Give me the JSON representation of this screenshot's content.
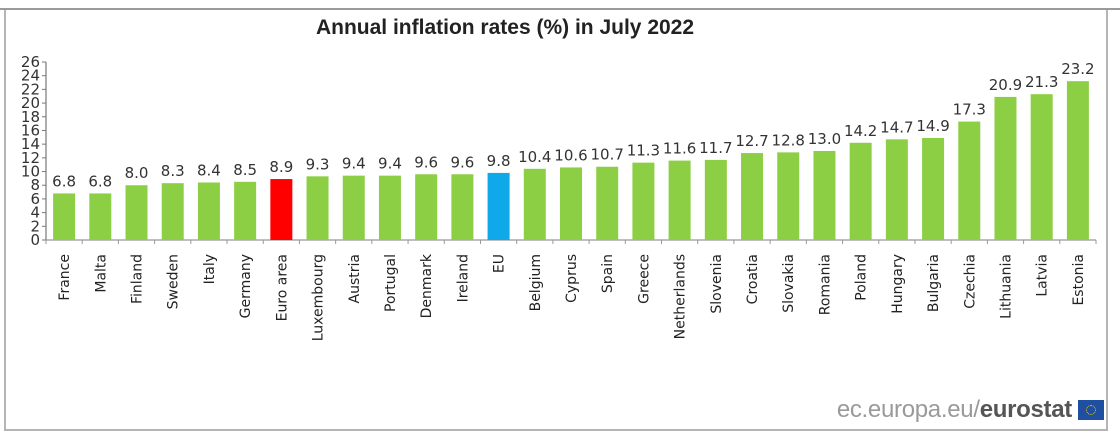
{
  "chart_data": {
    "type": "bar",
    "title": "Annual inflation rates (%)  in July 2022",
    "xlabel": "",
    "ylabel": "",
    "ylim": [
      0,
      26
    ],
    "yticks": [
      0,
      2,
      4,
      6,
      8,
      10,
      12,
      14,
      16,
      18,
      20,
      22,
      24,
      26
    ],
    "grid": false,
    "legend": "none",
    "categories": [
      "France",
      "Malta",
      "Finland",
      "Sweden",
      "Italy",
      "Germany",
      "Euro area",
      "Luxembourg",
      "Austria",
      "Portugal",
      "Denmark",
      "Ireland",
      "EU",
      "Belgium",
      "Cyprus",
      "Spain",
      "Greece",
      "Netherlands",
      "Slovenia",
      "Croatia",
      "Slovakia",
      "Romania",
      "Poland",
      "Hungary",
      "Bulgaria",
      "Czechia",
      "Lithuania",
      "Latvia",
      "Estonia"
    ],
    "values": [
      6.8,
      6.8,
      8.0,
      8.3,
      8.4,
      8.5,
      8.9,
      9.3,
      9.4,
      9.4,
      9.6,
      9.6,
      9.8,
      10.4,
      10.6,
      10.7,
      11.3,
      11.6,
      11.7,
      12.7,
      12.8,
      13.0,
      14.2,
      14.7,
      14.9,
      17.3,
      20.9,
      21.3,
      23.2
    ],
    "value_labels": [
      "6.8",
      "6.8",
      "8.0",
      "8.3",
      "8.4",
      "8.5",
      "8.9",
      "9.3",
      "9.4",
      "9.4",
      "9.6",
      "9.6",
      "9.8",
      "10.4",
      "10.6",
      "10.7",
      "11.3",
      "11.6",
      "11.7",
      "12.7",
      "12.8",
      "13.0",
      "14.2",
      "14.7",
      "14.9",
      "17.3",
      "20.9",
      "21.3",
      "23.2"
    ],
    "highlight": {
      "Euro area": "red",
      "EU": "blue"
    }
  },
  "colors": {
    "default_bar": "#8ccf45",
    "euro_area_bar": "#ff0000",
    "eu_bar": "#0fa8e8"
  },
  "source": {
    "prefix": "ec.europa.eu/",
    "brand": "eurostat",
    "flag_icon": "eu-flag-icon"
  }
}
